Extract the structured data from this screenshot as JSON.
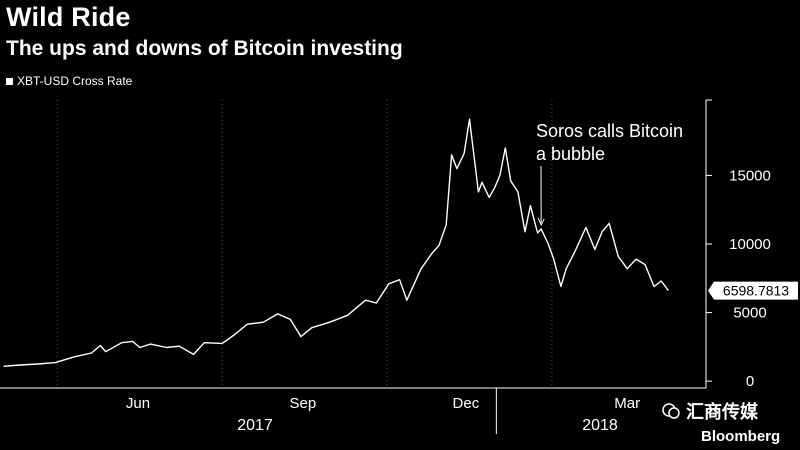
{
  "header": {
    "title": "Wild Ride",
    "subtitle": "The ups and downs of Bitcoin investing"
  },
  "brand": "Bloomberg",
  "watermark": "汇商传媒",
  "colors": {
    "background": "#000000",
    "line": "#ffffff",
    "grid": "#555555"
  },
  "chart_data": {
    "type": "line",
    "title": "Wild Ride",
    "subtitle": "The ups and downs of Bitcoin investing",
    "xlabel": "",
    "ylabel": "",
    "legend": {
      "entries": [
        "XBT-USD Cross Rate"
      ],
      "position": "top-left"
    },
    "ylim": [
      -500,
      20500
    ],
    "y_ticks": [
      0,
      5000,
      10000,
      15000
    ],
    "y_axis_position": "right",
    "grid": "vertical dotted",
    "x_ticks": [
      "Jun",
      "Sep",
      "Dec",
      "Mar"
    ],
    "x_year_labels": [
      "2017",
      "2018"
    ],
    "last_value_label": "6598.7813",
    "annotation": {
      "text": [
        "Soros calls Bitcoin",
        "a bubble"
      ],
      "date": "2018-01-26",
      "value": 11100
    },
    "series": [
      {
        "name": "XBT-USD Cross Rate",
        "points": [
          [
            "2017-04-01",
            1080
          ],
          [
            "2017-04-10",
            1180
          ],
          [
            "2017-04-20",
            1250
          ],
          [
            "2017-04-30",
            1350
          ],
          [
            "2017-05-10",
            1750
          ],
          [
            "2017-05-20",
            2050
          ],
          [
            "2017-05-25",
            2600
          ],
          [
            "2017-05-28",
            2150
          ],
          [
            "2017-06-06",
            2800
          ],
          [
            "2017-06-12",
            2900
          ],
          [
            "2017-06-16",
            2450
          ],
          [
            "2017-06-22",
            2700
          ],
          [
            "2017-07-01",
            2450
          ],
          [
            "2017-07-08",
            2550
          ],
          [
            "2017-07-16",
            1950
          ],
          [
            "2017-07-22",
            2800
          ],
          [
            "2017-08-01",
            2750
          ],
          [
            "2017-08-08",
            3400
          ],
          [
            "2017-08-15",
            4150
          ],
          [
            "2017-08-24",
            4300
          ],
          [
            "2017-09-01",
            4900
          ],
          [
            "2017-09-08",
            4500
          ],
          [
            "2017-09-14",
            3250
          ],
          [
            "2017-09-20",
            3900
          ],
          [
            "2017-09-30",
            4300
          ],
          [
            "2017-10-10",
            4800
          ],
          [
            "2017-10-20",
            5900
          ],
          [
            "2017-10-26",
            5700
          ],
          [
            "2017-11-02",
            7100
          ],
          [
            "2017-11-08",
            7400
          ],
          [
            "2017-11-12",
            5900
          ],
          [
            "2017-11-20",
            8200
          ],
          [
            "2017-11-26",
            9300
          ],
          [
            "2017-11-30",
            9900
          ],
          [
            "2017-12-04",
            11400
          ],
          [
            "2017-12-07",
            16500
          ],
          [
            "2017-12-10",
            15500
          ],
          [
            "2017-12-14",
            16600
          ],
          [
            "2017-12-17",
            19100
          ],
          [
            "2017-12-22",
            13800
          ],
          [
            "2017-12-24",
            14500
          ],
          [
            "2017-12-28",
            13400
          ],
          [
            "2017-12-31",
            14100
          ],
          [
            "2018-01-03",
            15000
          ],
          [
            "2018-01-06",
            17000
          ],
          [
            "2018-01-09",
            14600
          ],
          [
            "2018-01-13",
            13800
          ],
          [
            "2018-01-17",
            10900
          ],
          [
            "2018-01-20",
            12800
          ],
          [
            "2018-01-24",
            10800
          ],
          [
            "2018-01-26",
            11100
          ],
          [
            "2018-01-30",
            10000
          ],
          [
            "2018-02-02",
            8900
          ],
          [
            "2018-02-06",
            6900
          ],
          [
            "2018-02-09",
            8200
          ],
          [
            "2018-02-14",
            9500
          ],
          [
            "2018-02-20",
            11200
          ],
          [
            "2018-02-25",
            9600
          ],
          [
            "2018-03-01",
            10900
          ],
          [
            "2018-03-05",
            11500
          ],
          [
            "2018-03-10",
            9100
          ],
          [
            "2018-03-15",
            8200
          ],
          [
            "2018-03-20",
            8900
          ],
          [
            "2018-03-25",
            8500
          ],
          [
            "2018-03-30",
            6900
          ],
          [
            "2018-04-03",
            7300
          ],
          [
            "2018-04-07",
            6598.78
          ]
        ]
      }
    ]
  }
}
